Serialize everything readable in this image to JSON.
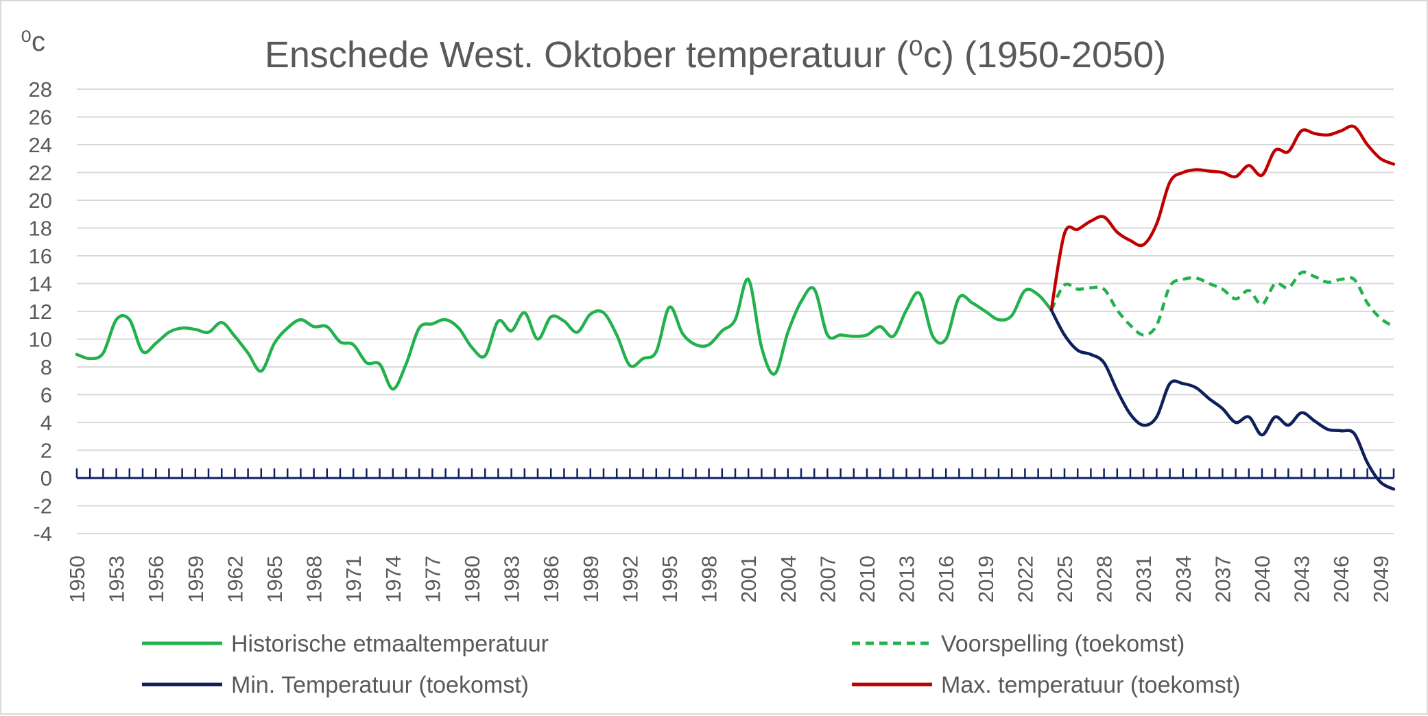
{
  "chart_data": {
    "type": "line",
    "title": "Enschede West. Oktober temperatuur (⁰c) (1950-2050)",
    "ylabel": "⁰c",
    "xlabel": "",
    "ylim": [
      -4,
      28
    ],
    "yticks": [
      28,
      26,
      24,
      22,
      20,
      18,
      16,
      14,
      12,
      10,
      8,
      6,
      4,
      2,
      0,
      -2,
      -4
    ],
    "xlim": [
      1950,
      2050
    ],
    "xticks": [
      1950,
      1953,
      1956,
      1959,
      1962,
      1965,
      1968,
      1971,
      1974,
      1977,
      1980,
      1983,
      1986,
      1989,
      1992,
      1995,
      1998,
      2001,
      2004,
      2007,
      2010,
      2013,
      2016,
      2019,
      2022,
      2025,
      2028,
      2031,
      2034,
      2037,
      2040,
      2043,
      2046,
      2049
    ],
    "grid": true,
    "legend_position": "bottom",
    "series": [
      {
        "name": "Historische etmaaltemperatuur",
        "color": "#22b14c",
        "style": "solid",
        "x": [
          1950,
          1951,
          1952,
          1953,
          1954,
          1955,
          1956,
          1957,
          1958,
          1959,
          1960,
          1961,
          1962,
          1963,
          1964,
          1965,
          1966,
          1967,
          1968,
          1969,
          1970,
          1971,
          1972,
          1973,
          1974,
          1975,
          1976,
          1977,
          1978,
          1979,
          1980,
          1981,
          1982,
          1983,
          1984,
          1985,
          1986,
          1987,
          1988,
          1989,
          1990,
          1991,
          1992,
          1993,
          1994,
          1995,
          1996,
          1997,
          1998,
          1999,
          2000,
          2001,
          2002,
          2003,
          2004,
          2005,
          2006,
          2007,
          2008,
          2009,
          2010,
          2011,
          2012,
          2013,
          2014,
          2015,
          2016,
          2017,
          2018,
          2019,
          2020,
          2021,
          2022,
          2023,
          2024
        ],
        "y": [
          8.9,
          8.6,
          9.0,
          11.4,
          11.4,
          9.1,
          9.7,
          10.5,
          10.8,
          10.7,
          10.5,
          11.2,
          10.2,
          9.0,
          7.7,
          9.7,
          10.8,
          11.4,
          10.9,
          10.9,
          9.8,
          9.6,
          8.3,
          8.2,
          6.4,
          8.2,
          10.8,
          11.1,
          11.4,
          10.8,
          9.4,
          8.8,
          11.3,
          10.6,
          11.9,
          10.0,
          11.6,
          11.3,
          10.5,
          11.8,
          11.9,
          10.3,
          8.1,
          8.6,
          9.1,
          12.3,
          10.4,
          9.6,
          9.6,
          10.6,
          11.4,
          14.3,
          9.4,
          7.5,
          10.5,
          12.7,
          13.6,
          10.3,
          10.3,
          10.2,
          10.3,
          10.9,
          10.2,
          12.1,
          13.3,
          10.2,
          10.0,
          13.0,
          12.6,
          12.0,
          11.4,
          11.7,
          13.5,
          13.2,
          12.1
        ]
      },
      {
        "name": "Voorspelling (toekomst)",
        "color": "#22b14c",
        "style": "dashed",
        "x": [
          2024,
          2025,
          2026,
          2027,
          2028,
          2029,
          2030,
          2031,
          2032,
          2033,
          2034,
          2035,
          2036,
          2037,
          2038,
          2039,
          2040,
          2041,
          2042,
          2043,
          2044,
          2045,
          2046,
          2047,
          2048,
          2049,
          2050
        ],
        "y": [
          12.1,
          13.9,
          13.6,
          13.7,
          13.6,
          12.1,
          11.0,
          10.3,
          11.0,
          13.8,
          14.3,
          14.4,
          14.0,
          13.6,
          12.9,
          13.5,
          12.5,
          14.0,
          13.7,
          14.8,
          14.5,
          14.1,
          14.3,
          14.3,
          12.6,
          11.5,
          10.9
        ]
      },
      {
        "name": "Min. Temperatuur (toekomst)",
        "color": "#0f1f5c",
        "style": "solid",
        "x": [
          2024,
          2025,
          2026,
          2027,
          2028,
          2029,
          2030,
          2031,
          2032,
          2033,
          2034,
          2035,
          2036,
          2037,
          2038,
          2039,
          2040,
          2041,
          2042,
          2043,
          2044,
          2045,
          2046,
          2047,
          2048,
          2049,
          2050
        ],
        "y": [
          12.1,
          10.3,
          9.2,
          8.9,
          8.3,
          6.3,
          4.6,
          3.8,
          4.4,
          6.8,
          6.8,
          6.5,
          5.7,
          5.0,
          4.0,
          4.4,
          3.1,
          4.4,
          3.8,
          4.7,
          4.1,
          3.5,
          3.4,
          3.2,
          1.1,
          -0.3,
          -0.8
        ]
      },
      {
        "name": "Max. temperatuur (toekomst)",
        "color": "#c00000",
        "style": "solid",
        "x": [
          2024,
          2025,
          2026,
          2027,
          2028,
          2029,
          2030,
          2031,
          2032,
          2033,
          2034,
          2035,
          2036,
          2037,
          2038,
          2039,
          2040,
          2041,
          2042,
          2043,
          2044,
          2045,
          2046,
          2047,
          2048,
          2049,
          2050
        ],
        "y": [
          12.1,
          17.6,
          17.9,
          18.5,
          18.8,
          17.7,
          17.1,
          16.8,
          18.3,
          21.3,
          22.0,
          22.2,
          22.1,
          22.0,
          21.7,
          22.5,
          21.8,
          23.6,
          23.5,
          25.0,
          24.8,
          24.7,
          25.0,
          25.3,
          24.0,
          23.0,
          22.6
        ]
      }
    ],
    "legend": [
      {
        "label": "Historische etmaaltemperatuur",
        "color": "#22b14c",
        "style": "solid",
        "column": 0,
        "row": 0
      },
      {
        "label": "Voorspelling (toekomst)",
        "color": "#22b14c",
        "style": "dashed",
        "column": 1,
        "row": 0
      },
      {
        "label": "Min. Temperatuur (toekomst)",
        "color": "#0f1f5c",
        "style": "solid",
        "column": 0,
        "row": 1
      },
      {
        "label": "Max. temperatuur (toekomst)",
        "color": "#c00000",
        "style": "solid",
        "column": 1,
        "row": 1
      }
    ],
    "zero_axis_color": "#0f1f5c"
  }
}
